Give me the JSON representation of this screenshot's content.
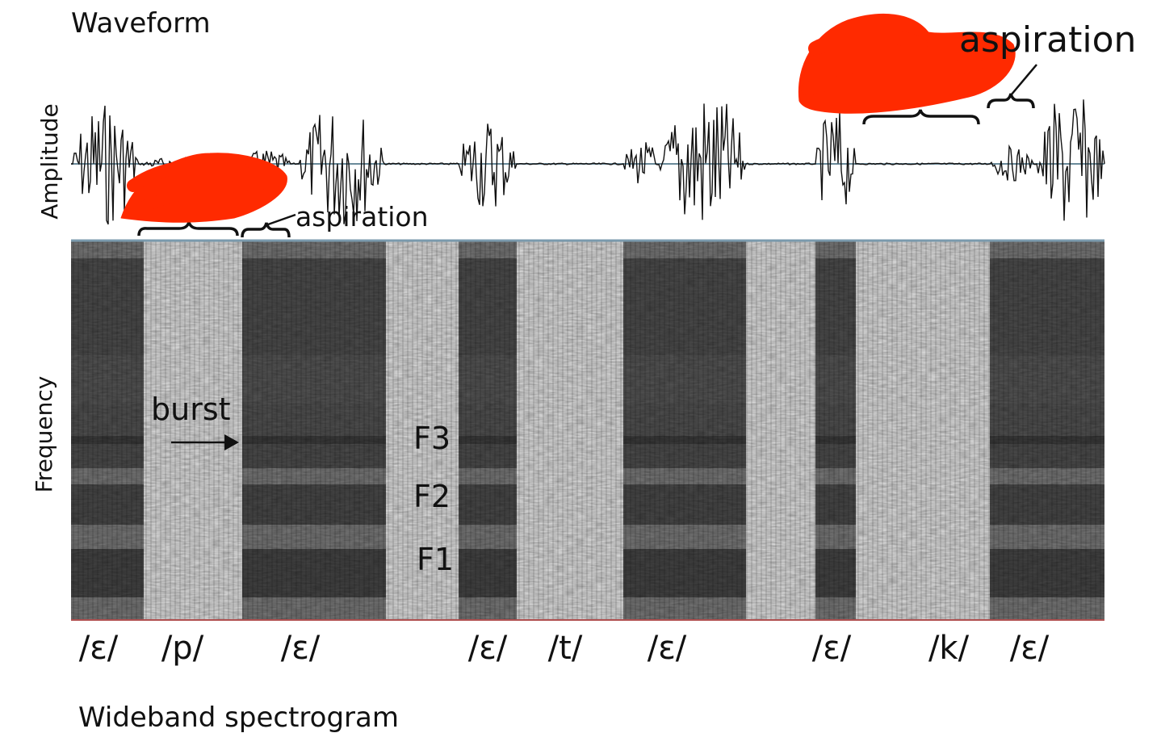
{
  "waveform": {
    "title": "Waveform",
    "ylabel": "Amplitude",
    "aspiration_left": "aspiration",
    "aspiration_right": "aspiration"
  },
  "spectrogram": {
    "title": "Wideband spectrogram",
    "ylabel": "Frequency",
    "burst_label": "burst",
    "formants": [
      "F3",
      "F2",
      "F1"
    ]
  },
  "segments": [
    "/ɛ/",
    "/p/",
    "/ɛ/",
    "/ɛ/",
    "/t/",
    "/ɛ/",
    "/ɛ/",
    "/k/",
    "/ɛ/"
  ],
  "colors": {
    "ink": "#111111",
    "axis_line": "#7a9aad",
    "baseline_red": "#b05050",
    "redaction": "#ff2a00"
  }
}
